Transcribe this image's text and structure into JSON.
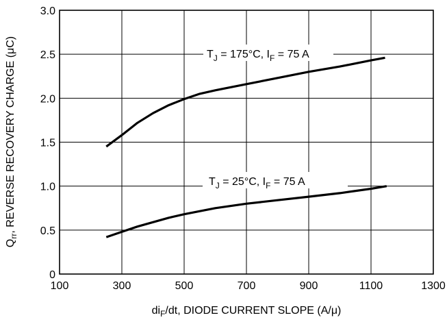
{
  "chart_data": {
    "type": "line",
    "xlabel": {
      "pre": "di",
      "sub": "F",
      "post": "/dt, DIODE CURRENT SLOPE (A/μ)"
    },
    "ylabel": {
      "pre": "Q",
      "sub": "rr",
      "post": ", REVERSE RECOVERY CHARGE (μC)"
    },
    "xlim": [
      100,
      1300
    ],
    "ylim": [
      0,
      3.0
    ],
    "xticks": [
      100,
      300,
      500,
      700,
      900,
      1100,
      1300
    ],
    "yticks": [
      0,
      0.5,
      1.0,
      1.5,
      2.0,
      2.5,
      3.0
    ],
    "xtick_labels": [
      "100",
      "300",
      "500",
      "700",
      "900",
      "1100",
      "1300"
    ],
    "ytick_labels": [
      "0",
      "0.5",
      "1.0",
      "1.5",
      "2.0",
      "2.5",
      "3.0"
    ],
    "grid": true,
    "series": [
      {
        "label": {
          "t": "T",
          "tsub": "J",
          "mid": " = 175°C, I",
          "isub": "F",
          "post": " = 75 A"
        },
        "x": [
          250,
          300,
          350,
          400,
          450,
          500,
          550,
          600,
          700,
          800,
          900,
          1000,
          1100,
          1145
        ],
        "y": [
          1.45,
          1.58,
          1.72,
          1.83,
          1.92,
          1.99,
          2.05,
          2.09,
          2.16,
          2.23,
          2.3,
          2.36,
          2.43,
          2.46
        ]
      },
      {
        "label": {
          "t": "T",
          "tsub": "J",
          "mid": " = 25°C, I",
          "isub": "F",
          "post": " = 75 A"
        },
        "x": [
          250,
          300,
          350,
          400,
          450,
          500,
          600,
          700,
          800,
          900,
          1000,
          1100,
          1150
        ],
        "y": [
          0.42,
          0.48,
          0.54,
          0.59,
          0.64,
          0.68,
          0.75,
          0.8,
          0.84,
          0.88,
          0.92,
          0.97,
          1.0
        ]
      }
    ]
  }
}
